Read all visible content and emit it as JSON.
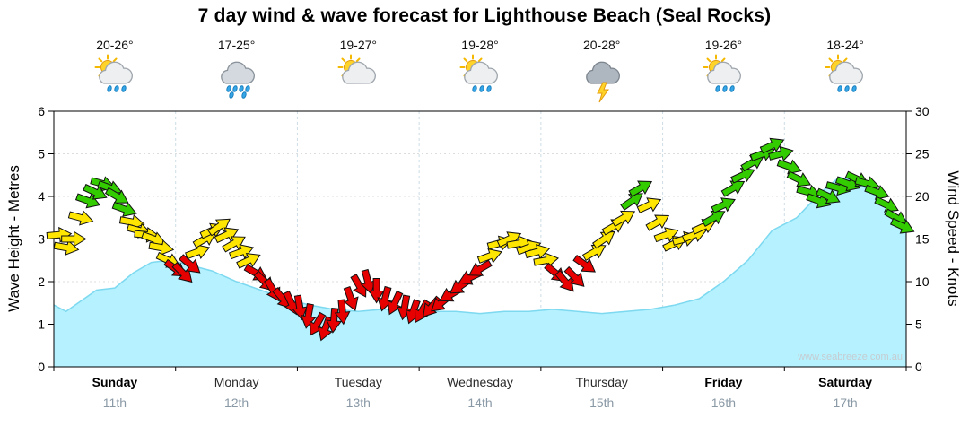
{
  "title": "7 day wind & wave forecast for Lighthouse Beach (Seal Rocks)",
  "watermark": "www.seabreeze.com.au",
  "days": [
    {
      "name": "Sunday",
      "date": "11th",
      "temp": "20-26°",
      "icon": "sun-cloud-showers-icon",
      "weekend": true
    },
    {
      "name": "Monday",
      "date": "12th",
      "temp": "17-25°",
      "icon": "rain-cloud-icon",
      "weekend": false
    },
    {
      "name": "Tuesday",
      "date": "13th",
      "temp": "19-27°",
      "icon": "sun-cloud-icon",
      "weekend": false
    },
    {
      "name": "Wednesday",
      "date": "14th",
      "temp": "19-28°",
      "icon": "sun-cloud-showers-icon",
      "weekend": false
    },
    {
      "name": "Thursday",
      "date": "15th",
      "temp": "20-28°",
      "icon": "storm-cloud-icon",
      "weekend": false
    },
    {
      "name": "Friday",
      "date": "16th",
      "temp": "19-26°",
      "icon": "sun-cloud-showers-icon",
      "weekend": true
    },
    {
      "name": "Saturday",
      "date": "17th",
      "temp": "18-24°",
      "icon": "sun-cloud-showers-icon",
      "weekend": true
    }
  ],
  "axes": {
    "left_label": "Wave Height - Metres",
    "right_label": "Wind Speed - Knots",
    "left_ticks": [
      0,
      1,
      2,
      3,
      4,
      5,
      6
    ],
    "right_ticks": [
      0,
      5,
      10,
      15,
      20,
      25,
      30
    ],
    "left_range": [
      0,
      6
    ],
    "right_range": [
      0,
      30
    ]
  },
  "colors": {
    "wave_fill": "#B5F1FF",
    "wave_line": "#7DD9F0",
    "arrow_green": "#33CC00",
    "arrow_yellow": "#FFE600",
    "arrow_red": "#E60000",
    "grid": "#dddddd",
    "day_separator": "#ccdde6"
  },
  "chart_data": {
    "type": "area",
    "title": "7 day wind & wave forecast for Lighthouse Beach (Seal Rocks)",
    "x_unit": "days across Sunday 11th to Saturday 17th (0-7)",
    "ylim_left_metres": [
      0,
      6
    ],
    "ylim_right_knots": [
      0,
      30
    ],
    "grid": true,
    "wave_height_m": {
      "x": [
        0,
        0.1,
        0.2,
        0.35,
        0.5,
        0.65,
        0.8,
        0.95,
        1.1,
        1.3,
        1.5,
        1.7,
        1.9,
        2.1,
        2.3,
        2.5,
        2.7,
        2.9,
        3.1,
        3.3,
        3.5,
        3.7,
        3.9,
        4.1,
        4.3,
        4.5,
        4.7,
        4.9,
        5.1,
        5.3,
        5.5,
        5.7,
        5.9,
        6.1,
        6.3,
        6.45,
        6.6,
        6.75,
        6.9,
        7.0
      ],
      "y": [
        1.45,
        1.3,
        1.5,
        1.8,
        1.85,
        2.2,
        2.45,
        2.5,
        2.4,
        2.25,
        2.0,
        1.8,
        1.6,
        1.45,
        1.35,
        1.3,
        1.35,
        1.35,
        1.3,
        1.3,
        1.25,
        1.3,
        1.3,
        1.35,
        1.3,
        1.25,
        1.3,
        1.35,
        1.45,
        1.6,
        2.0,
        2.5,
        3.2,
        3.5,
        4.1,
        4.45,
        4.35,
        4.0,
        3.6,
        3.45
      ]
    },
    "wind_arrows": {
      "columns": [
        "day_x",
        "knots",
        "dir_deg",
        "color"
      ],
      "rows": [
        [
          0.04,
          15.5,
          -5,
          "yellow"
        ],
        [
          0.1,
          14.0,
          10,
          "yellow"
        ],
        [
          0.16,
          15.0,
          0,
          "yellow"
        ],
        [
          0.22,
          17.5,
          15,
          "yellow"
        ],
        [
          0.28,
          19.5,
          20,
          "green"
        ],
        [
          0.34,
          20.5,
          25,
          "green"
        ],
        [
          0.4,
          21.5,
          15,
          "green"
        ],
        [
          0.46,
          21.0,
          20,
          "green"
        ],
        [
          0.52,
          20.0,
          30,
          "green"
        ],
        [
          0.58,
          18.5,
          20,
          "green"
        ],
        [
          0.64,
          17.0,
          10,
          "yellow"
        ],
        [
          0.7,
          16.0,
          15,
          "yellow"
        ],
        [
          0.76,
          15.5,
          5,
          "yellow"
        ],
        [
          0.82,
          15.0,
          20,
          "yellow"
        ],
        [
          0.88,
          14.0,
          10,
          "yellow"
        ],
        [
          0.94,
          12.5,
          25,
          "yellow"
        ],
        [
          1.0,
          11.5,
          35,
          "red"
        ],
        [
          1.06,
          11.0,
          45,
          "red"
        ],
        [
          1.12,
          12.0,
          40,
          "red"
        ],
        [
          1.18,
          13.5,
          -20,
          "yellow"
        ],
        [
          1.24,
          15.0,
          -30,
          "yellow"
        ],
        [
          1.3,
          16.0,
          -25,
          "yellow"
        ],
        [
          1.36,
          16.5,
          -35,
          "yellow"
        ],
        [
          1.42,
          15.5,
          -25,
          "yellow"
        ],
        [
          1.48,
          14.5,
          -30,
          "yellow"
        ],
        [
          1.54,
          13.5,
          -20,
          "yellow"
        ],
        [
          1.6,
          12.5,
          -25,
          "yellow"
        ],
        [
          1.66,
          11.0,
          30,
          "red"
        ],
        [
          1.73,
          10.0,
          45,
          "red"
        ],
        [
          1.8,
          9.0,
          60,
          "red"
        ],
        [
          1.88,
          8.0,
          50,
          "red"
        ],
        [
          1.95,
          7.5,
          65,
          "red"
        ],
        [
          2.02,
          7.0,
          80,
          "red"
        ],
        [
          2.09,
          6.0,
          100,
          "red"
        ],
        [
          2.16,
          5.0,
          120,
          "red"
        ],
        [
          2.23,
          4.5,
          110,
          "red"
        ],
        [
          2.3,
          5.5,
          95,
          "red"
        ],
        [
          2.37,
          6.5,
          85,
          "red"
        ],
        [
          2.44,
          8.0,
          70,
          "red"
        ],
        [
          2.51,
          9.5,
          60,
          "red"
        ],
        [
          2.58,
          10.0,
          75,
          "red"
        ],
        [
          2.65,
          9.0,
          90,
          "red"
        ],
        [
          2.72,
          8.0,
          105,
          "red"
        ],
        [
          2.8,
          7.5,
          115,
          "red"
        ],
        [
          2.88,
          7.0,
          100,
          "red"
        ],
        [
          2.95,
          6.5,
          110,
          "red"
        ],
        [
          3.02,
          6.5,
          120,
          "red"
        ],
        [
          3.1,
          7.0,
          130,
          "red"
        ],
        [
          3.18,
          7.5,
          140,
          "red"
        ],
        [
          3.26,
          8.5,
          150,
          "red"
        ],
        [
          3.34,
          9.5,
          145,
          "red"
        ],
        [
          3.42,
          10.5,
          155,
          "red"
        ],
        [
          3.5,
          11.5,
          150,
          "red"
        ],
        [
          3.58,
          13.0,
          -20,
          "yellow"
        ],
        [
          3.66,
          14.5,
          -15,
          "yellow"
        ],
        [
          3.74,
          15.0,
          -25,
          "yellow"
        ],
        [
          3.82,
          14.5,
          -10,
          "yellow"
        ],
        [
          3.9,
          14.0,
          -20,
          "yellow"
        ],
        [
          3.97,
          13.5,
          -15,
          "yellow"
        ],
        [
          4.04,
          12.5,
          -10,
          "yellow"
        ],
        [
          4.12,
          11.0,
          40,
          "red"
        ],
        [
          4.2,
          10.0,
          50,
          "red"
        ],
        [
          4.28,
          10.5,
          45,
          "red"
        ],
        [
          4.36,
          12.0,
          35,
          "red"
        ],
        [
          4.44,
          13.5,
          -30,
          "yellow"
        ],
        [
          4.52,
          15.0,
          -35,
          "yellow"
        ],
        [
          4.6,
          16.5,
          -30,
          "yellow"
        ],
        [
          4.68,
          17.5,
          -30,
          "yellow"
        ],
        [
          4.75,
          19.5,
          -35,
          "green"
        ],
        [
          4.82,
          21.0,
          -30,
          "green"
        ],
        [
          4.89,
          19.0,
          -25,
          "yellow"
        ],
        [
          4.96,
          17.0,
          -30,
          "yellow"
        ],
        [
          5.03,
          15.5,
          -20,
          "yellow"
        ],
        [
          5.1,
          14.5,
          -25,
          "yellow"
        ],
        [
          5.18,
          15.0,
          -15,
          "yellow"
        ],
        [
          5.26,
          15.5,
          -20,
          "yellow"
        ],
        [
          5.34,
          16.5,
          -25,
          "yellow"
        ],
        [
          5.42,
          17.5,
          -30,
          "green"
        ],
        [
          5.5,
          19.0,
          -25,
          "green"
        ],
        [
          5.58,
          21.0,
          -30,
          "green"
        ],
        [
          5.66,
          22.5,
          -25,
          "green"
        ],
        [
          5.74,
          24.0,
          -30,
          "green"
        ],
        [
          5.82,
          25.0,
          -20,
          "green"
        ],
        [
          5.9,
          26.0,
          -25,
          "green"
        ],
        [
          5.97,
          25.0,
          -15,
          "green"
        ],
        [
          6.04,
          23.5,
          20,
          "green"
        ],
        [
          6.12,
          22.0,
          25,
          "green"
        ],
        [
          6.2,
          20.5,
          15,
          "green"
        ],
        [
          6.28,
          19.5,
          20,
          "green"
        ],
        [
          6.36,
          20.0,
          25,
          "green"
        ],
        [
          6.44,
          21.0,
          15,
          "green"
        ],
        [
          6.52,
          21.5,
          20,
          "green"
        ],
        [
          6.6,
          22.0,
          25,
          "green"
        ],
        [
          6.68,
          21.5,
          15,
          "green"
        ],
        [
          6.76,
          20.5,
          20,
          "green"
        ],
        [
          6.84,
          19.0,
          25,
          "green"
        ],
        [
          6.92,
          17.5,
          30,
          "green"
        ],
        [
          6.97,
          16.5,
          25,
          "green"
        ]
      ]
    }
  }
}
